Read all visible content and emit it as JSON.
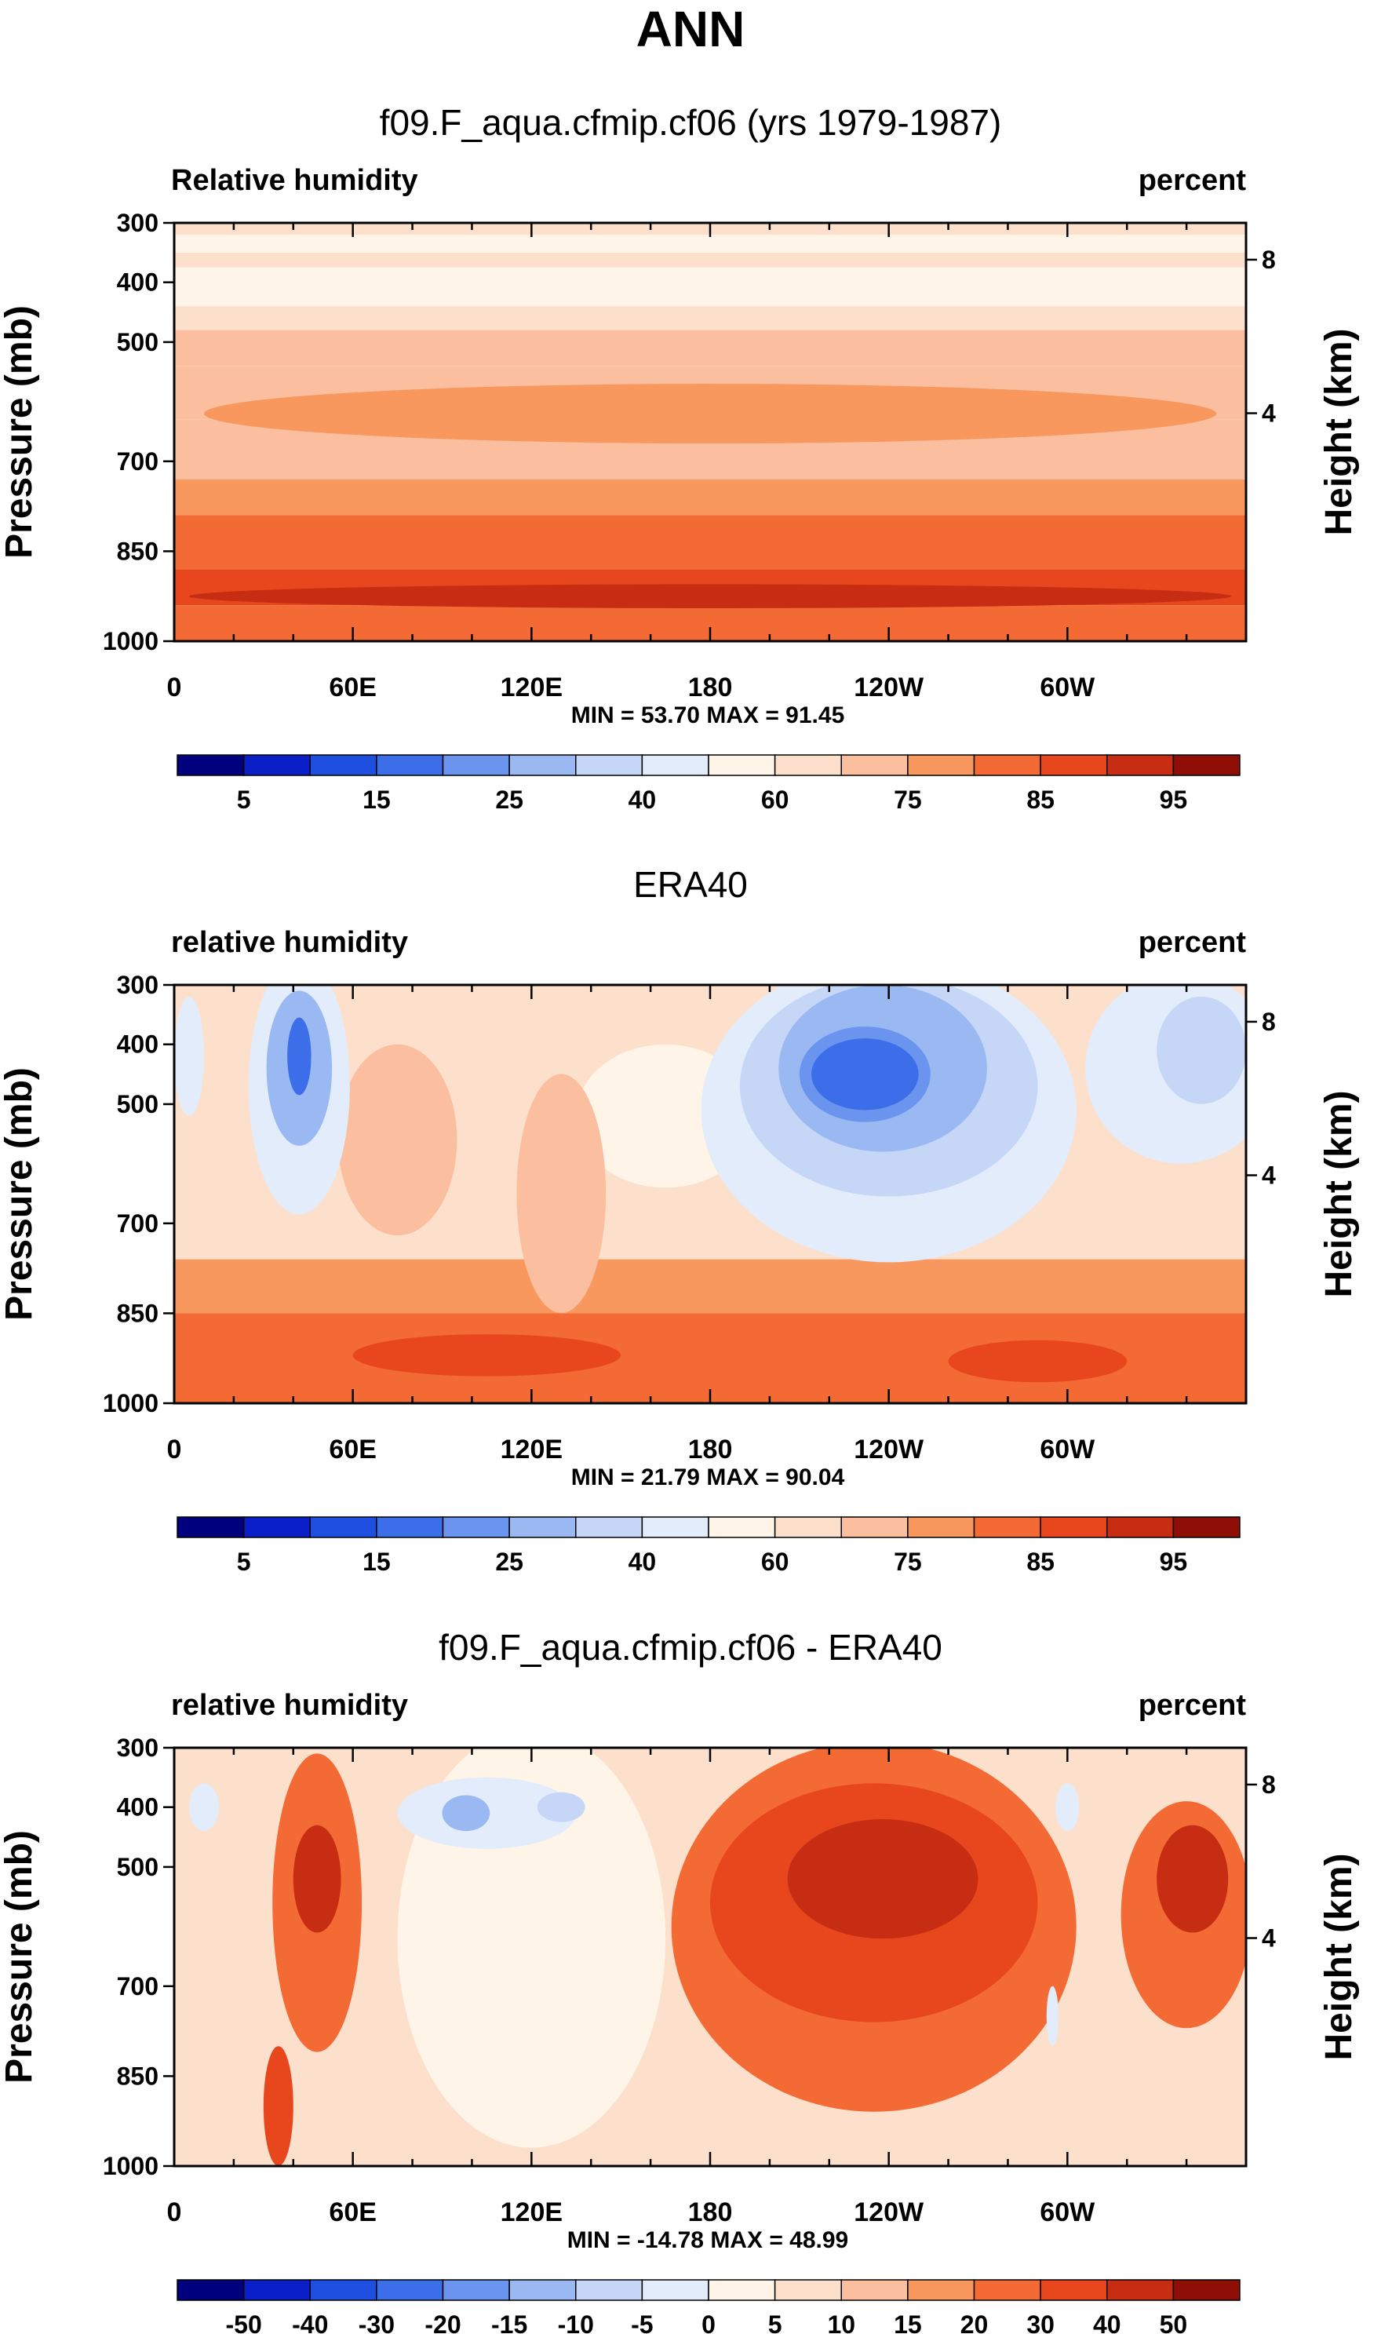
{
  "page_title": "ANN",
  "chart_data": [
    {
      "type": "heatmap",
      "title": "f09.F_aqua.cfmip.cf06 (yrs 1979-1987)",
      "left_label": "Relative humidity",
      "right_label": "percent",
      "ylabel": "Pressure (mb)",
      "y2label": "Height (km)",
      "x_ticks": [
        "0",
        "60E",
        "120E",
        "180",
        "120W",
        "60W"
      ],
      "y_ticks": [
        "300",
        "400",
        "500",
        "700",
        "850",
        "1000"
      ],
      "y2_ticks": [
        "8",
        "4"
      ],
      "stats": "MIN = 53.70  MAX = 91.45",
      "colorbar_labels": [
        "5",
        "15",
        "25",
        "40",
        "60",
        "75",
        "85",
        "95"
      ],
      "colorbar_colors": [
        "#00007f",
        "#0a1fc8",
        "#1f4fe0",
        "#3b6ee8",
        "#6a94ee",
        "#9ab8f2",
        "#c5d6f7",
        "#e2ecfb",
        "#fff4e8",
        "#fde0cc",
        "#fbbf9f",
        "#f8985f",
        "#f36a35",
        "#e8461c",
        "#c62d12",
        "#8f0e06"
      ],
      "bands": [
        {
          "p": [
            300,
            320
          ],
          "color": "#fde0cc"
        },
        {
          "p": [
            320,
            350
          ],
          "color": "#fff4e8"
        },
        {
          "p": [
            350,
            375
          ],
          "color": "#fde0cc"
        },
        {
          "p": [
            375,
            440
          ],
          "color": "#fff4e8"
        },
        {
          "p": [
            440,
            480
          ],
          "color": "#fde0cc"
        },
        {
          "p": [
            480,
            540
          ],
          "color": "#fbbf9f"
        },
        {
          "p": [
            540,
            630
          ],
          "color": "#fbbf9f"
        },
        {
          "p": [
            630,
            730
          ],
          "color": "#fbbf9f"
        },
        {
          "p": [
            730,
            790
          ],
          "color": "#f8985f"
        },
        {
          "p": [
            790,
            880
          ],
          "color": "#f36a35"
        },
        {
          "p": [
            880,
            940
          ],
          "color": "#e8461c"
        },
        {
          "p": [
            940,
            1000
          ],
          "color": "#f36a35"
        }
      ],
      "blobs": [
        {
          "lon": 180,
          "p": 620,
          "rlon": 170,
          "rp": 50,
          "color": "#f8985f"
        },
        {
          "lon": 180,
          "p": 925,
          "rlon": 175,
          "rp": 20,
          "color": "#c62d12"
        }
      ]
    },
    {
      "type": "heatmap",
      "title": "ERA40",
      "left_label": "relative humidity",
      "right_label": "percent",
      "ylabel": "Pressure (mb)",
      "y2label": "Height (km)",
      "x_ticks": [
        "0",
        "60E",
        "120E",
        "180",
        "120W",
        "60W"
      ],
      "y_ticks": [
        "300",
        "400",
        "500",
        "700",
        "850",
        "1000"
      ],
      "y2_ticks": [
        "8",
        "4"
      ],
      "stats": "MIN = 21.79  MAX = 90.04",
      "colorbar_labels": [
        "5",
        "15",
        "25",
        "40",
        "60",
        "75",
        "85",
        "95"
      ],
      "colorbar_colors": [
        "#00007f",
        "#0a1fc8",
        "#1f4fe0",
        "#3b6ee8",
        "#6a94ee",
        "#9ab8f2",
        "#c5d6f7",
        "#e2ecfb",
        "#fff4e8",
        "#fde0cc",
        "#fbbf9f",
        "#f8985f",
        "#f36a35",
        "#e8461c",
        "#c62d12",
        "#8f0e06"
      ],
      "background": "#fde0cc",
      "bands": [
        {
          "p": [
            760,
            850
          ],
          "color": "#f8985f"
        },
        {
          "p": [
            850,
            1000
          ],
          "color": "#f36a35"
        }
      ],
      "blobs": [
        {
          "lon": 165,
          "p": 520,
          "rlon": 30,
          "rp": 120,
          "color": "#fff4e8"
        },
        {
          "lon": 75,
          "p": 560,
          "rlon": 20,
          "rp": 160,
          "color": "#fbbf9f"
        },
        {
          "lon": 130,
          "p": 650,
          "rlon": 15,
          "rp": 200,
          "color": "#fbbf9f"
        },
        {
          "lon": 42,
          "p": 470,
          "rlon": 17,
          "rp": 260,
          "color": "#e2ecfb"
        },
        {
          "lon": 42,
          "p": 440,
          "rlon": 11,
          "rp": 130,
          "color": "#9ab8f2"
        },
        {
          "lon": 42,
          "p": 420,
          "rlon": 4,
          "rp": 65,
          "color": "#3b6ee8"
        },
        {
          "lon": 240,
          "p": 510,
          "rlon": 63,
          "rp": 300,
          "color": "#e2ecfb"
        },
        {
          "lon": 240,
          "p": 470,
          "rlon": 50,
          "rp": 200,
          "color": "#c5d6f7"
        },
        {
          "lon": 238,
          "p": 440,
          "rlon": 35,
          "rp": 140,
          "color": "#9ab8f2"
        },
        {
          "lon": 232,
          "p": 450,
          "rlon": 22,
          "rp": 80,
          "color": "#6a94ee"
        },
        {
          "lon": 232,
          "p": 450,
          "rlon": 18,
          "rp": 60,
          "color": "#3b6ee8"
        },
        {
          "lon": 338,
          "p": 440,
          "rlon": 32,
          "rp": 180,
          "color": "#e2ecfb"
        },
        {
          "lon": 345,
          "p": 410,
          "rlon": 15,
          "rp": 90,
          "color": "#c5d6f7"
        },
        {
          "lon": 5,
          "p": 420,
          "rlon": 5,
          "rp": 100,
          "color": "#e2ecfb"
        },
        {
          "lon": 105,
          "p": 920,
          "rlon": 45,
          "rp": 35,
          "color": "#e8461c"
        },
        {
          "lon": 290,
          "p": 930,
          "rlon": 30,
          "rp": 35,
          "color": "#e8461c"
        }
      ]
    },
    {
      "type": "heatmap",
      "title": "f09.F_aqua.cfmip.cf06 - ERA40",
      "left_label": "relative humidity",
      "right_label": "percent",
      "ylabel": "Pressure (mb)",
      "y2label": "Height (km)",
      "x_ticks": [
        "0",
        "60E",
        "120E",
        "180",
        "120W",
        "60W"
      ],
      "y_ticks": [
        "300",
        "400",
        "500",
        "700",
        "850",
        "1000"
      ],
      "y2_ticks": [
        "8",
        "4"
      ],
      "stats": "MIN = -14.78  MAX = 48.99",
      "colorbar_labels": [
        "-50",
        "-40",
        "-30",
        "-20",
        "-15",
        "-10",
        "-5",
        "0",
        "5",
        "10",
        "15",
        "20",
        "30",
        "40",
        "50"
      ],
      "colorbar_colors": [
        "#00007f",
        "#0a1fc8",
        "#1f4fe0",
        "#3b6ee8",
        "#6a94ee",
        "#9ab8f2",
        "#c5d6f7",
        "#e2ecfb",
        "#fff4e8",
        "#fde0cc",
        "#fbbf9f",
        "#f8985f",
        "#f36a35",
        "#e8461c",
        "#c62d12",
        "#8f0e06"
      ],
      "background": "#fde0cc",
      "bands": [],
      "blobs": [
        {
          "lon": 120,
          "p": 620,
          "rlon": 45,
          "rp": 380,
          "color": "#fff4e8"
        },
        {
          "lon": 105,
          "p": 410,
          "rlon": 30,
          "rp": 60,
          "color": "#e2ecfb"
        },
        {
          "lon": 98,
          "p": 410,
          "rlon": 8,
          "rp": 30,
          "color": "#9ab8f2"
        },
        {
          "lon": 130,
          "p": 400,
          "rlon": 8,
          "rp": 25,
          "color": "#c5d6f7"
        },
        {
          "lon": 235,
          "p": 600,
          "rlon": 68,
          "rp": 320,
          "color": "#f36a35"
        },
        {
          "lon": 235,
          "p": 560,
          "rlon": 55,
          "rp": 200,
          "color": "#e8461c"
        },
        {
          "lon": 238,
          "p": 520,
          "rlon": 32,
          "rp": 100,
          "color": "#c62d12"
        },
        {
          "lon": 48,
          "p": 560,
          "rlon": 15,
          "rp": 250,
          "color": "#f36a35"
        },
        {
          "lon": 48,
          "p": 520,
          "rlon": 8,
          "rp": 90,
          "color": "#c62d12"
        },
        {
          "lon": 340,
          "p": 580,
          "rlon": 22,
          "rp": 190,
          "color": "#f36a35"
        },
        {
          "lon": 342,
          "p": 520,
          "rlon": 12,
          "rp": 90,
          "color": "#c62d12"
        },
        {
          "lon": 35,
          "p": 900,
          "rlon": 5,
          "rp": 100,
          "color": "#e8461c"
        },
        {
          "lon": 10,
          "p": 400,
          "rlon": 5,
          "rp": 40,
          "color": "#e2ecfb"
        },
        {
          "lon": 300,
          "p": 400,
          "rlon": 4,
          "rp": 40,
          "color": "#e2ecfb"
        },
        {
          "lon": 295,
          "p": 750,
          "rlon": 2,
          "rp": 50,
          "color": "#e2ecfb"
        }
      ]
    }
  ]
}
